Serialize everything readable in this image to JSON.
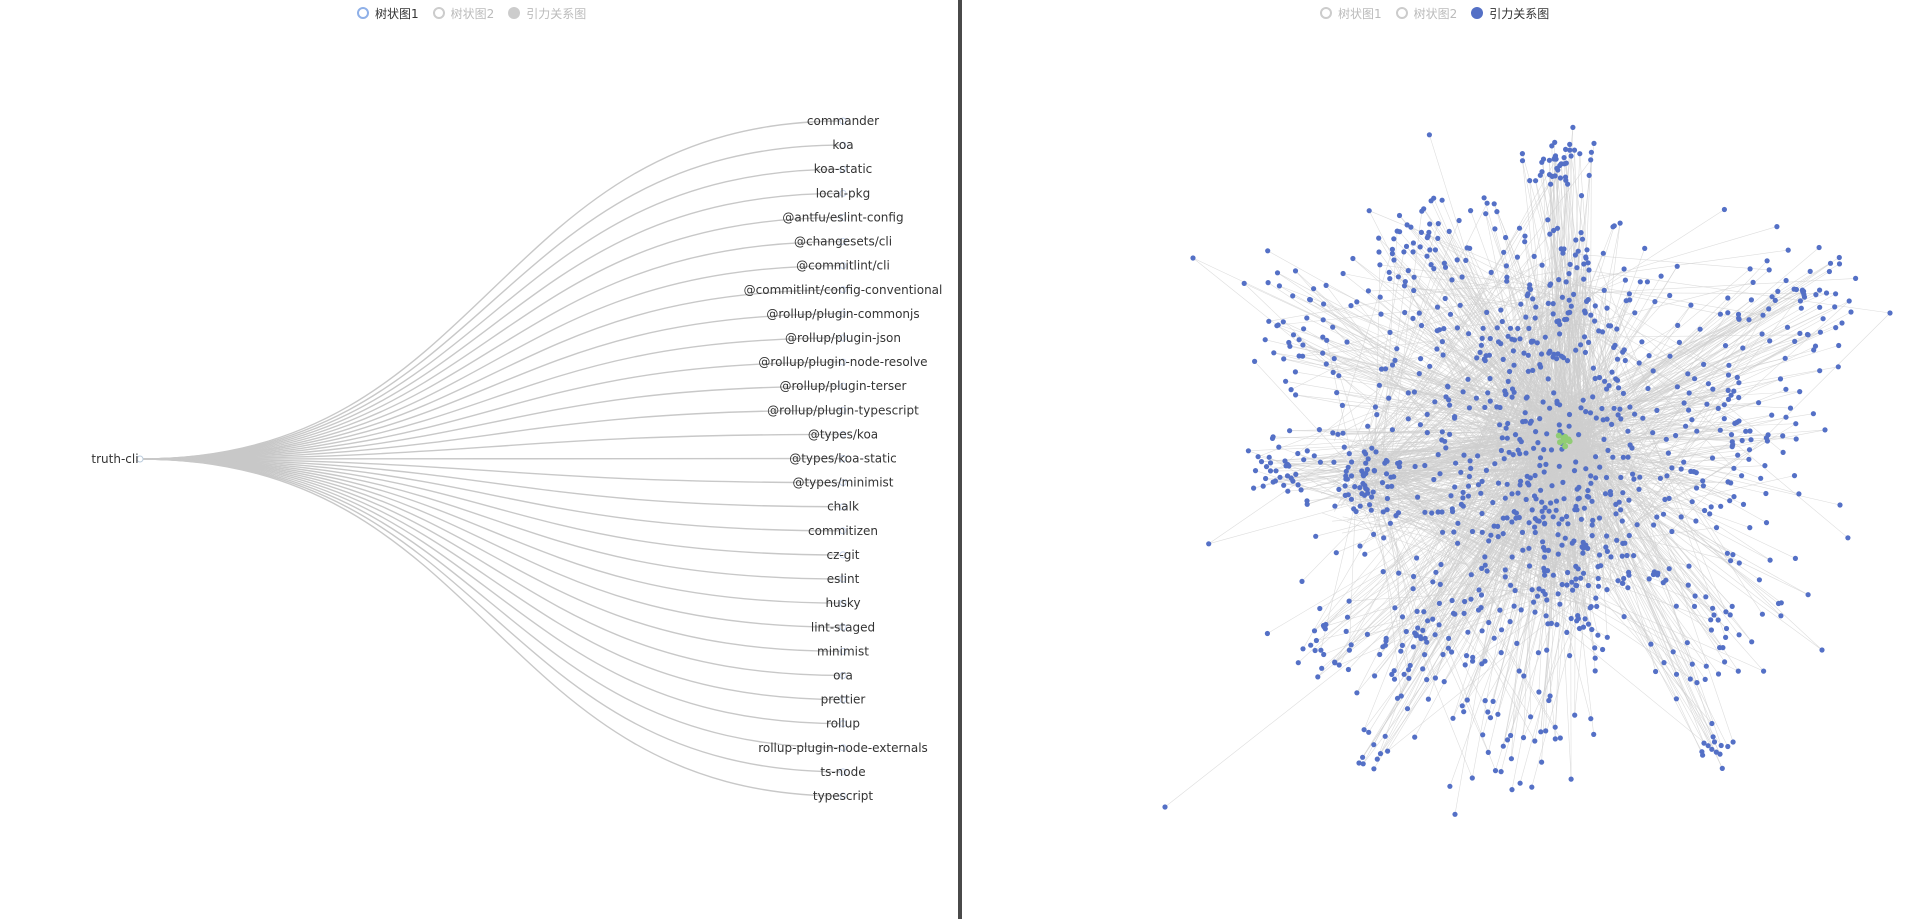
{
  "left_panel": {
    "legend": [
      {
        "label": "树状图1",
        "state": "active-ring"
      },
      {
        "label": "树状图2",
        "state": "inactive-ring"
      },
      {
        "label": "引力关系图",
        "state": "inactive-fill"
      }
    ],
    "tree": {
      "root": "truth-cli",
      "children": [
        "commander",
        "koa",
        "koa-static",
        "local-pkg",
        "@antfu/eslint-config",
        "@changesets/cli",
        "@commitlint/cli",
        "@commitlint/config-conventional",
        "@rollup/plugin-commonjs",
        "@rollup/plugin-json",
        "@rollup/plugin-node-resolve",
        "@rollup/plugin-terser",
        "@rollup/plugin-typescript",
        "@types/koa",
        "@types/koa-static",
        "@types/minimist",
        "chalk",
        "commitizen",
        "cz-git",
        "eslint",
        "husky",
        "lint-staged",
        "minimist",
        "ora",
        "prettier",
        "rollup",
        "rollup-plugin-node-externals",
        "ts-node",
        "typescript"
      ]
    }
  },
  "right_panel": {
    "legend": [
      {
        "label": "树状图1",
        "state": "inactive-ring"
      },
      {
        "label": "树状图2",
        "state": "inactive-ring"
      },
      {
        "label": "引力关系图",
        "state": "active-fill"
      }
    ]
  },
  "colors": {
    "node": "#5470c6",
    "center_node": "#91cc75",
    "link": "#c8c8c8",
    "divider": "#4a4a4a"
  }
}
